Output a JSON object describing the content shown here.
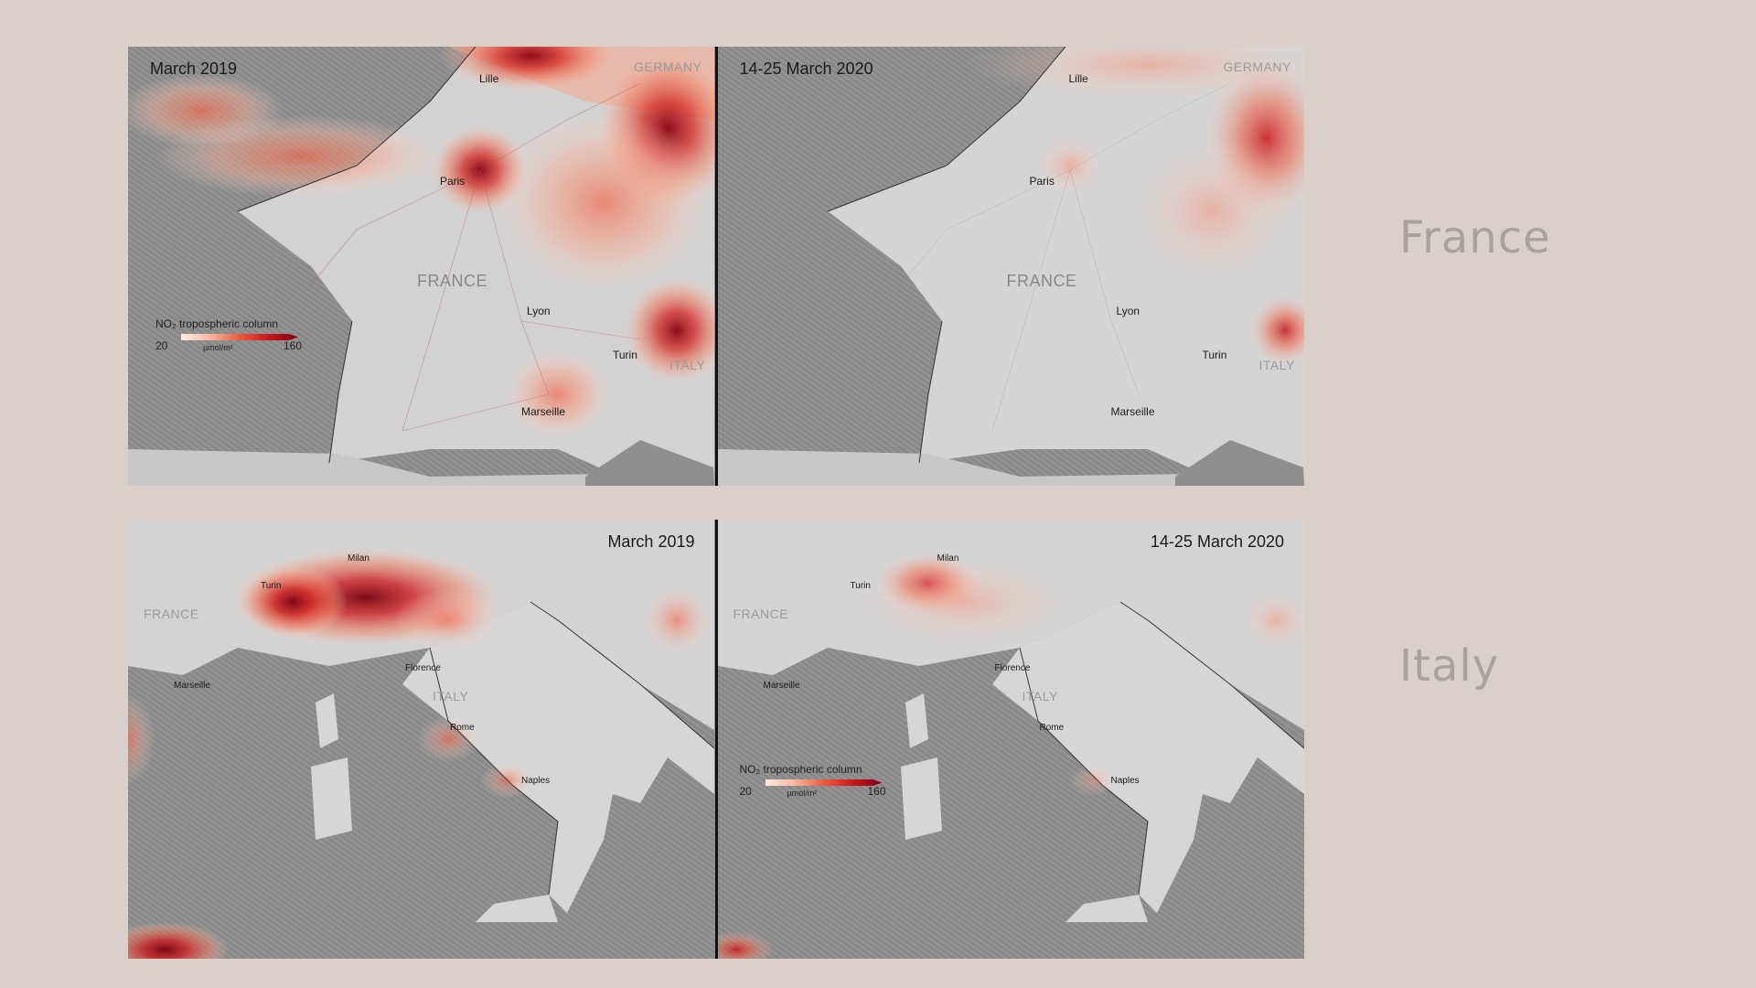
{
  "rows": [
    {
      "region": "France",
      "panels": [
        {
          "title": "March 2019",
          "country_labels": [
            "GERMANY",
            "FRANCE",
            "ITALY"
          ],
          "cities": [
            "Lille",
            "Paris",
            "Lyon",
            "Turin",
            "Marseille"
          ],
          "legend": {
            "title": "NO₂ tropospheric column",
            "min": "20",
            "max": "160",
            "unit": "µmol/m²"
          }
        },
        {
          "title": "14-25 March 2020",
          "country_labels": [
            "GERMANY",
            "FRANCE",
            "ITALY"
          ],
          "cities": [
            "Lille",
            "Paris",
            "Lyon",
            "Turin",
            "Marseille"
          ]
        }
      ]
    },
    {
      "region": "Italy",
      "panels": [
        {
          "title": "March 2019",
          "country_labels": [
            "FRANCE",
            "ITALY"
          ],
          "cities": [
            "Milan",
            "Turin",
            "Marseille",
            "Florence",
            "Rome",
            "Naples"
          ]
        },
        {
          "title": "14-25 March 2020",
          "country_labels": [
            "FRANCE",
            "ITALY"
          ],
          "cities": [
            "Milan",
            "Turin",
            "Marseille",
            "Florence",
            "Rome",
            "Naples"
          ],
          "legend": {
            "title": "NO₂ tropospheric column",
            "min": "20",
            "max": "160",
            "unit": "µmol/m²"
          }
        }
      ]
    }
  ],
  "colors": {
    "background": "#d9cfcb",
    "sea": "#8e8e8e",
    "land": "#d4d4d4",
    "no2_low": "#fdece4",
    "no2_high": "#7a0010"
  },
  "colormap": "white-to-dark-red sequential",
  "pollution_level": {
    "france_2019": "high",
    "france_2020": "reduced",
    "italy_2019": "high",
    "italy_2020": "reduced"
  }
}
